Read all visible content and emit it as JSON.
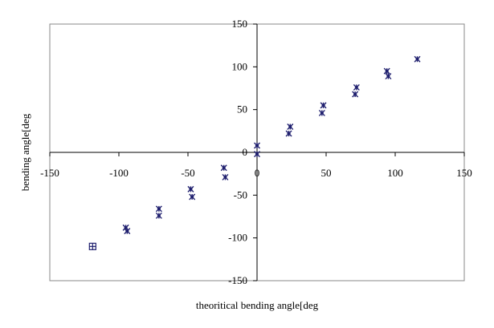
{
  "chart_data": {
    "type": "scatter",
    "title": "",
    "xlabel": "theoritical bending angle[deg",
    "ylabel": "bending angle[deg",
    "xlim": [
      -150,
      150
    ],
    "ylim": [
      -150,
      150
    ],
    "xticks": [
      -150,
      -100,
      -50,
      0,
      50,
      100,
      150
    ],
    "yticks": [
      -150,
      -100,
      -50,
      0,
      50,
      100,
      150
    ],
    "grid": false,
    "legend": "none",
    "marker_color": "#1f1f6e",
    "series": [
      {
        "marker": "asterisk",
        "points": [
          [
            -95,
            -88
          ],
          [
            -94,
            -92
          ],
          [
            -71,
            -66
          ],
          [
            -71,
            -74
          ],
          [
            -48,
            -43
          ],
          [
            -47,
            -52
          ],
          [
            -24,
            -18
          ],
          [
            -23,
            -29
          ],
          [
            0,
            8
          ],
          [
            0,
            -2
          ],
          [
            24,
            30
          ],
          [
            23,
            22
          ],
          [
            48,
            55
          ],
          [
            47,
            46
          ],
          [
            72,
            76
          ],
          [
            71,
            68
          ],
          [
            94,
            95
          ],
          [
            95,
            89
          ],
          [
            116,
            109
          ]
        ]
      },
      {
        "marker": "boxed-plus",
        "points": [
          [
            -119,
            -110
          ]
        ]
      }
    ]
  }
}
